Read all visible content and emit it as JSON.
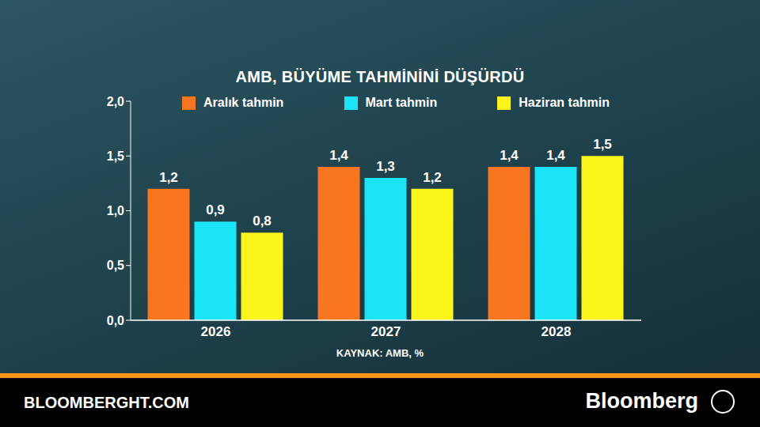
{
  "chart_data": {
    "type": "bar",
    "title": "AMB, BÜYÜME TAHMİNİNİ DÜŞÜRDÜ",
    "source": "KAYNAK: AMB, %",
    "footer_left": "BLOOMBERGHT.COM",
    "footer_right": "Bloomberg",
    "categories": [
      "2026",
      "2027",
      "2028"
    ],
    "series": [
      {
        "name": "Aralık tahmin",
        "color": "#f7761f",
        "values": [
          1.2,
          1.4,
          1.4
        ],
        "value_labels": [
          "1,2",
          "1,4",
          "1,4"
        ]
      },
      {
        "name": "Mart tahmin",
        "color": "#1ae4f5",
        "values": [
          0.9,
          1.3,
          1.4
        ],
        "value_labels": [
          "0,9",
          "1,3",
          "1,4"
        ]
      },
      {
        "name": "Haziran tahmin",
        "color": "#fbf51c",
        "values": [
          0.8,
          1.2,
          1.5
        ],
        "value_labels": [
          "0,8",
          "1,2",
          "1,5"
        ]
      }
    ],
    "ylim": [
      0,
      2
    ],
    "yticks": [
      {
        "value": 0,
        "label": "0,0"
      },
      {
        "value": 0.5,
        "label": "0,5"
      },
      {
        "value": 1,
        "label": "1,0"
      },
      {
        "value": 1.5,
        "label": "1,5"
      },
      {
        "value": 2,
        "label": "2,0"
      }
    ],
    "grid": false,
    "legend": "top",
    "data_labels": true
  }
}
